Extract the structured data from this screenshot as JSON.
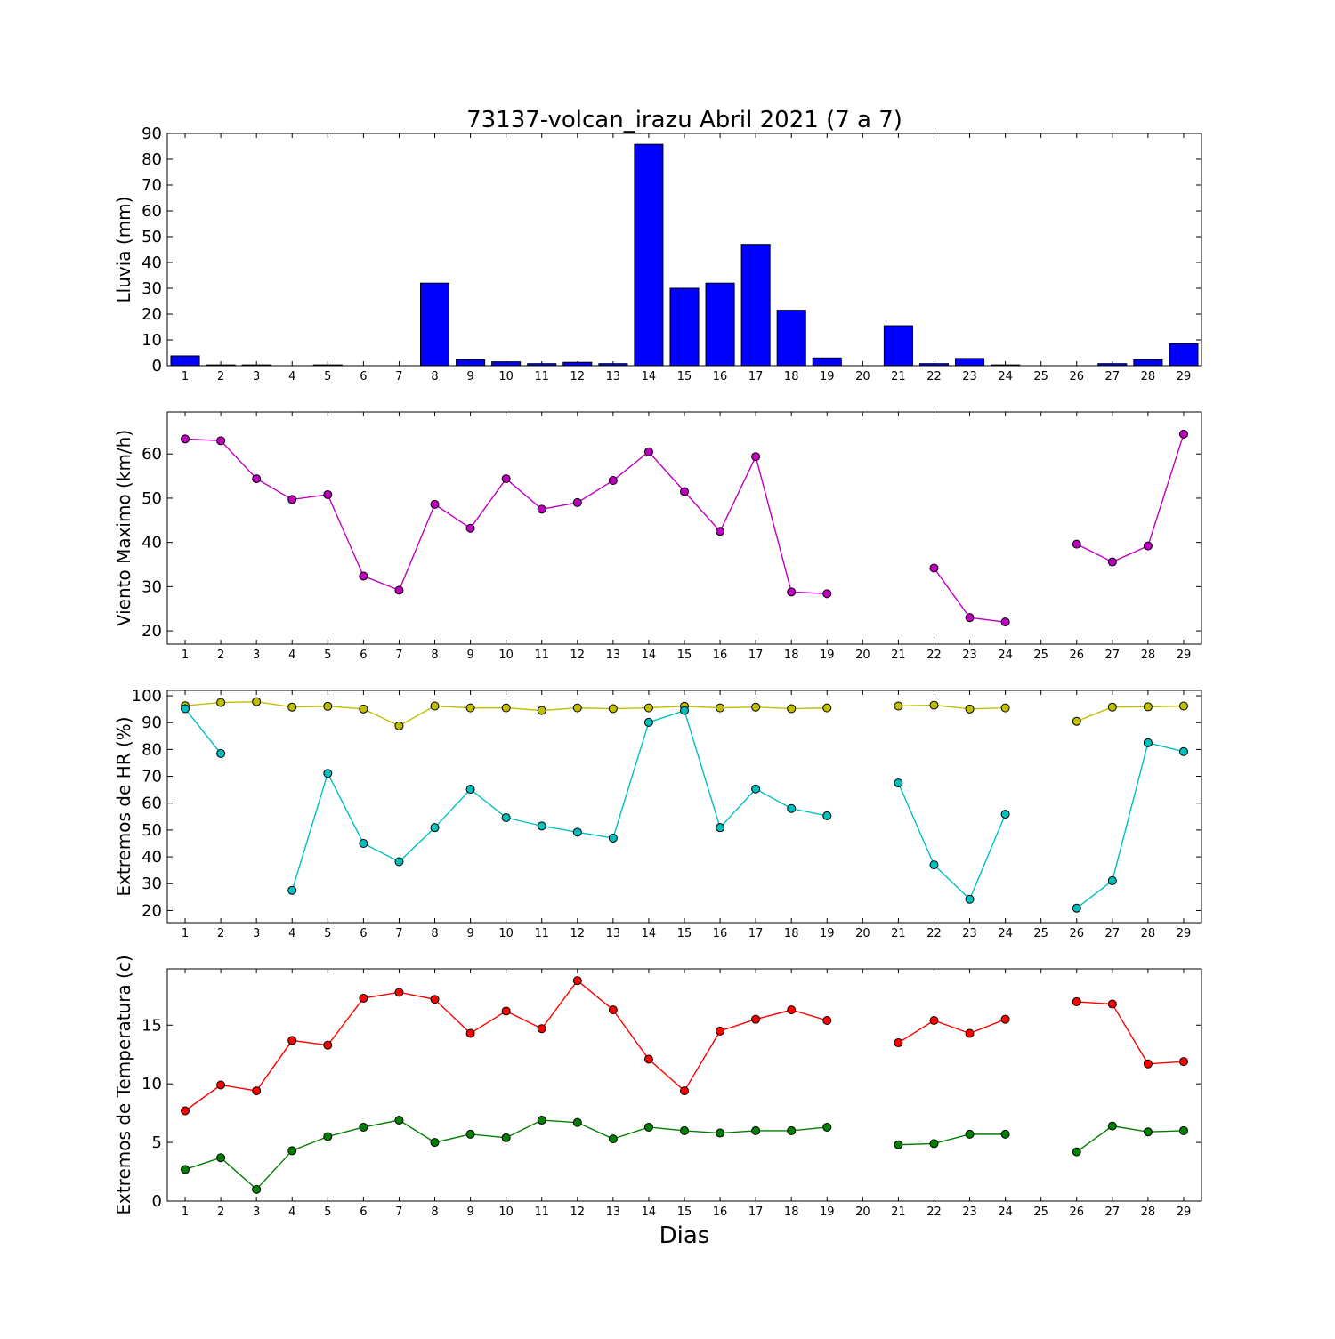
{
  "title": "73137-volcan_irazu Abril 2021  (7 a 7)",
  "xlabel": "Dias",
  "chart_data": [
    {
      "type": "bar",
      "ylabel": "Lluvia (mm)",
      "ylim": [
        0,
        90
      ],
      "yticks": [
        0,
        10,
        20,
        30,
        40,
        50,
        60,
        70,
        80,
        90
      ],
      "categories": [
        "1",
        "2",
        "3",
        "4",
        "5",
        "6",
        "7",
        "8",
        "9",
        "10",
        "11",
        "12",
        "13",
        "14",
        "15",
        "16",
        "17",
        "18",
        "19",
        "20",
        "21",
        "22",
        "23",
        "24",
        "25",
        "26",
        "27",
        "28",
        "29"
      ],
      "series": [
        {
          "color": "#0000ff",
          "values": [
            3.8,
            0.3,
            0.3,
            0,
            0.3,
            0,
            0,
            32,
            2.3,
            1.5,
            0.8,
            1.3,
            0.8,
            85.8,
            30,
            32,
            47,
            21.5,
            3,
            0,
            15.5,
            0.8,
            2.8,
            0.3,
            0,
            0,
            0.8,
            2.3,
            8.5
          ]
        }
      ]
    },
    {
      "type": "line",
      "ylabel": "Viento Maximo (km/h)",
      "ylim": [
        17,
        69.5
      ],
      "yticks": [
        20,
        30,
        40,
        50,
        60
      ],
      "x": [
        1,
        2,
        3,
        4,
        5,
        6,
        7,
        8,
        9,
        10,
        11,
        12,
        13,
        14,
        15,
        16,
        17,
        18,
        19,
        20,
        21,
        22,
        23,
        24,
        25,
        26,
        27,
        28,
        29
      ],
      "series": [
        {
          "color": "#bf00bf",
          "values": [
            63.4,
            63,
            54.4,
            49.7,
            50.8,
            32.4,
            29.2,
            48.6,
            43.2,
            54.4,
            47.5,
            49,
            54,
            60.5,
            51.5,
            42.5,
            59.4,
            28.8,
            28.4,
            null,
            null,
            34.2,
            23,
            22,
            null,
            39.6,
            35.6,
            39.2,
            64.5
          ]
        }
      ]
    },
    {
      "type": "line",
      "ylabel": "Extremos de HR (%)",
      "ylim": [
        15.5,
        102
      ],
      "yticks": [
        20,
        30,
        40,
        50,
        60,
        70,
        80,
        90,
        100
      ],
      "x": [
        1,
        2,
        3,
        4,
        5,
        6,
        7,
        8,
        9,
        10,
        11,
        12,
        13,
        14,
        15,
        16,
        17,
        18,
        19,
        20,
        21,
        22,
        23,
        24,
        25,
        26,
        27,
        28,
        29
      ],
      "series": [
        {
          "color": "#bfbf00",
          "values": [
            96.3,
            97.5,
            97.8,
            95.8,
            96.1,
            95.1,
            88.8,
            96.2,
            95.5,
            95.5,
            94.5,
            95.5,
            95.2,
            95.5,
            96.1,
            95.5,
            95.8,
            95.2,
            95.5,
            null,
            96.2,
            96.5,
            95.1,
            95.5,
            null,
            90.5,
            95.8,
            95.9,
            96.2
          ]
        },
        {
          "color": "#00bfbf",
          "values": [
            95.2,
            78.5,
            null,
            27.5,
            71.1,
            45,
            38.2,
            50.9,
            65.2,
            54.6,
            51.5,
            49.2,
            47,
            90.1,
            94.5,
            50.9,
            65.3,
            58,
            55.3,
            null,
            67.5,
            37,
            24.2,
            55.9,
            null,
            20.9,
            31.1,
            82.5,
            79.2
          ]
        }
      ]
    },
    {
      "type": "line",
      "ylabel": "Extremos de Temperatura (c)",
      "ylim": [
        0,
        19.8
      ],
      "yticks": [
        0,
        5,
        10,
        15
      ],
      "x": [
        1,
        2,
        3,
        4,
        5,
        6,
        7,
        8,
        9,
        10,
        11,
        12,
        13,
        14,
        15,
        16,
        17,
        18,
        19,
        20,
        21,
        22,
        23,
        24,
        25,
        26,
        27,
        28,
        29
      ],
      "series": [
        {
          "color": "#ff0000",
          "values": [
            7.7,
            9.9,
            9.4,
            13.7,
            13.3,
            17.3,
            17.8,
            17.2,
            14.3,
            16.2,
            14.7,
            18.8,
            16.3,
            12.1,
            9.4,
            14.5,
            15.5,
            16.3,
            15.4,
            null,
            13.5,
            15.4,
            14.3,
            15.5,
            null,
            17,
            16.8,
            11.7,
            11.9
          ]
        },
        {
          "color": "#007f00",
          "values": [
            2.7,
            3.7,
            1,
            4.3,
            5.5,
            6.3,
            6.9,
            5,
            5.7,
            5.4,
            6.9,
            6.7,
            5.3,
            6.3,
            6,
            5.8,
            6,
            6,
            6.3,
            null,
            4.8,
            4.9,
            5.7,
            5.7,
            null,
            4.2,
            6.4,
            5.9,
            6
          ]
        }
      ]
    }
  ]
}
